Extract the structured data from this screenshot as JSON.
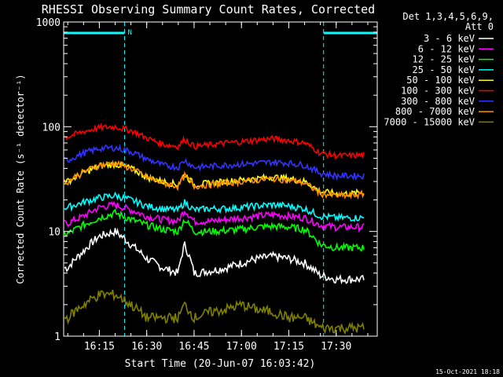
{
  "chart_data": {
    "type": "line",
    "title": "RHESSI Observing Summary Count Rates, Corrected",
    "xlabel": "Start Time (20-Jun-07 16:03:42)",
    "ylabel": "Corrected Count Rate (s⁻¹ detector⁻¹)",
    "y_scale": "log",
    "ylim": [
      1,
      1000
    ],
    "xlim": [
      "16:03:42",
      "17:43:00"
    ],
    "x_ticks": [
      "16:15",
      "16:30",
      "16:45",
      "17:00",
      "17:15",
      "17:30"
    ],
    "y_ticks": [
      "1",
      "10",
      "100",
      "1000"
    ],
    "legend_header": [
      "Det 1,3,4,5,6,9,",
      "Att 0"
    ],
    "legend_position": "right",
    "footer": "15-Oct-2021 18:18",
    "night_marker_label": "N",
    "night_intervals": [
      [
        "16:03:42",
        "16:23:00"
      ],
      [
        "17:26:00",
        "17:43:00"
      ]
    ],
    "series": [
      {
        "name": "3 - 6 keV",
        "color": "#ffffff",
        "x": [
          "16:05",
          "16:10",
          "16:15",
          "16:20",
          "16:25",
          "16:30",
          "16:35",
          "16:40",
          "16:42",
          "16:45",
          "16:50",
          "16:55",
          "17:00",
          "17:05",
          "17:10",
          "17:15",
          "17:20",
          "17:25",
          "17:30",
          "17:35",
          "17:40"
        ],
        "y": [
          4.5,
          6.5,
          9.0,
          10.0,
          7.5,
          5.5,
          4.5,
          4.0,
          7.5,
          4.0,
          4.2,
          4.5,
          5.0,
          5.5,
          5.8,
          5.5,
          5.0,
          3.8,
          3.5,
          3.5,
          3.5
        ]
      },
      {
        "name": "6 - 12 keV",
        "color": "#ff00ff",
        "x": [
          "16:05",
          "16:10",
          "16:15",
          "16:20",
          "16:25",
          "16:30",
          "16:35",
          "16:40",
          "16:42",
          "16:45",
          "16:50",
          "16:55",
          "17:00",
          "17:05",
          "17:10",
          "17:15",
          "17:20",
          "17:25",
          "17:30",
          "17:35",
          "17:40"
        ],
        "y": [
          12,
          14,
          17,
          18,
          16,
          14,
          13,
          12.5,
          16,
          12.5,
          12.5,
          13,
          13.5,
          14,
          14.5,
          14,
          13.5,
          11.5,
          11,
          11,
          11
        ]
      },
      {
        "name": "12 - 25 keV",
        "color": "#00ff00",
        "x": [
          "16:05",
          "16:10",
          "16:15",
          "16:20",
          "16:25",
          "16:30",
          "16:35",
          "16:40",
          "16:42",
          "16:45",
          "16:50",
          "16:55",
          "17:00",
          "17:05",
          "17:10",
          "17:15",
          "17:20",
          "17:25",
          "17:30",
          "17:35",
          "17:40"
        ],
        "y": [
          9.5,
          11.5,
          13.5,
          15,
          13,
          11.5,
          10.5,
          10,
          13,
          10,
          10,
          10.2,
          10.5,
          11,
          11.2,
          11,
          10.5,
          7.5,
          7,
          7,
          7
        ]
      },
      {
        "name": "25 - 50 keV",
        "color": "#00ffff",
        "x": [
          "16:05",
          "16:10",
          "16:15",
          "16:20",
          "16:25",
          "16:30",
          "16:35",
          "16:40",
          "16:42",
          "16:45",
          "16:50",
          "16:55",
          "17:00",
          "17:05",
          "17:10",
          "17:15",
          "17:20",
          "17:25",
          "17:30",
          "17:35",
          "17:40"
        ],
        "y": [
          17,
          19,
          21,
          22,
          20,
          17.5,
          16.5,
          16,
          19,
          16,
          16.5,
          16.5,
          17,
          17.5,
          18,
          17.5,
          16.5,
          14,
          13.5,
          13.5,
          13.5
        ]
      },
      {
        "name": "50 - 100 keV",
        "color": "#ffff00",
        "x": [
          "16:05",
          "16:10",
          "16:15",
          "16:20",
          "16:25",
          "16:30",
          "16:35",
          "16:40",
          "16:42",
          "16:45",
          "16:50",
          "16:55",
          "17:00",
          "17:05",
          "17:10",
          "17:15",
          "17:20",
          "17:25",
          "17:30",
          "17:35",
          "17:40"
        ],
        "y": [
          30,
          36,
          42,
          44,
          40,
          33,
          30,
          28,
          35,
          28,
          29,
          30,
          31,
          32,
          33,
          32,
          30,
          24,
          23,
          23,
          24
        ]
      },
      {
        "name": "100 - 300 keV",
        "color": "#ff0000",
        "x": [
          "16:05",
          "16:10",
          "16:15",
          "16:20",
          "16:25",
          "16:30",
          "16:35",
          "16:40",
          "16:42",
          "16:45",
          "16:50",
          "16:55",
          "17:00",
          "17:05",
          "17:10",
          "17:15",
          "17:20",
          "17:25",
          "17:30",
          "17:35",
          "17:40"
        ],
        "y": [
          80,
          90,
          98,
          100,
          92,
          78,
          68,
          65,
          76,
          65,
          67,
          70,
          72,
          75,
          77,
          74,
          70,
          56,
          53,
          53,
          54
        ]
      },
      {
        "name": "300 - 800 keV",
        "color": "#3333ff",
        "x": [
          "16:05",
          "16:10",
          "16:15",
          "16:20",
          "16:25",
          "16:30",
          "16:35",
          "16:40",
          "16:42",
          "16:45",
          "16:50",
          "16:55",
          "17:00",
          "17:05",
          "17:10",
          "17:15",
          "17:20",
          "17:25",
          "17:30",
          "17:35",
          "17:40"
        ],
        "y": [
          48,
          56,
          62,
          63,
          58,
          49,
          43,
          41,
          48,
          41,
          42,
          43,
          44,
          45,
          46,
          45,
          43,
          36,
          34,
          34,
          34
        ]
      },
      {
        "name": "800 - 7000 keV",
        "color": "#ff8c00",
        "x": [
          "16:05",
          "16:10",
          "16:15",
          "16:20",
          "16:25",
          "16:30",
          "16:35",
          "16:40",
          "16:42",
          "16:45",
          "16:50",
          "16:55",
          "17:00",
          "17:05",
          "17:10",
          "17:15",
          "17:20",
          "17:25",
          "17:30",
          "17:35",
          "17:40"
        ],
        "y": [
          30,
          37,
          43,
          45,
          40,
          33,
          29,
          27,
          34,
          27,
          28,
          29,
          30,
          31,
          32,
          31,
          29,
          23,
          22,
          22,
          23
        ]
      },
      {
        "name": "7000 - 15000 keV",
        "color": "#808000",
        "x": [
          "16:05",
          "16:10",
          "16:15",
          "16:20",
          "16:25",
          "16:30",
          "16:35",
          "16:40",
          "16:42",
          "16:45",
          "16:50",
          "16:55",
          "17:00",
          "17:05",
          "17:10",
          "17:15",
          "17:20",
          "17:25",
          "17:30",
          "17:35",
          "17:40"
        ],
        "y": [
          1.5,
          2,
          2.5,
          2.5,
          2,
          1.5,
          1.5,
          1.5,
          2,
          1.5,
          1.7,
          1.8,
          2,
          1.8,
          1.7,
          1.5,
          1.5,
          1.2,
          1.2,
          1.2,
          1.2
        ]
      }
    ]
  }
}
